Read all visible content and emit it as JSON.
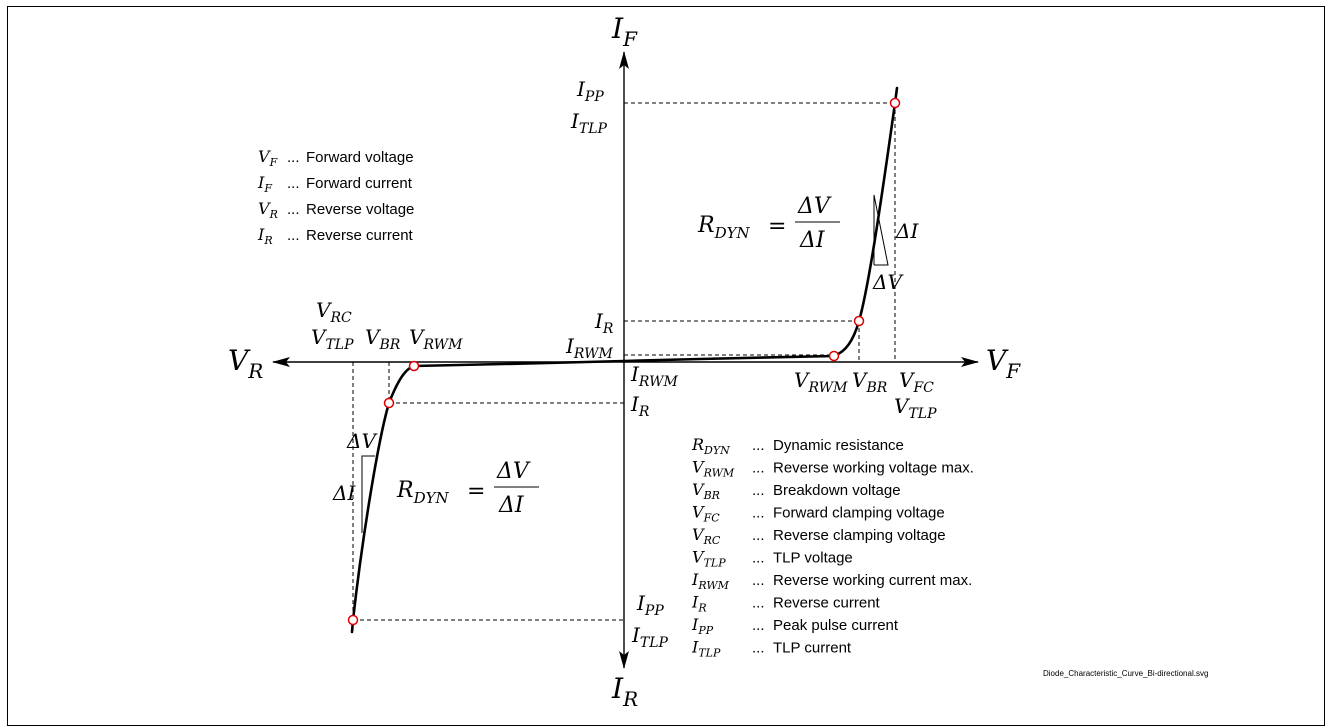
{
  "axes": {
    "top": {
      "main": "I",
      "sub": "F"
    },
    "bottom": {
      "main": "I",
      "sub": "R"
    },
    "left": {
      "main": "V",
      "sub": "R"
    },
    "right": {
      "main": "V",
      "sub": "F"
    }
  },
  "forward_labels": {
    "ipp": {
      "main": "I",
      "sub": "PP"
    },
    "itlp": {
      "main": "I",
      "sub": "TLP"
    },
    "ir": {
      "main": "I",
      "sub": "R"
    },
    "irwm": {
      "main": "I",
      "sub": "RWM"
    },
    "vrwm": {
      "main": "V",
      "sub": "RWM"
    },
    "vbr": {
      "main": "V",
      "sub": "BR"
    },
    "vfc": {
      "main": "V",
      "sub": "FC"
    },
    "vtlp": {
      "main": "V",
      "sub": "TLP"
    },
    "delta_i": "ΔI",
    "delta_v": "ΔV"
  },
  "reverse_labels": {
    "vrc": {
      "main": "V",
      "sub": "RC"
    },
    "vtlp": {
      "main": "V",
      "sub": "TLP"
    },
    "vbr": {
      "main": "V",
      "sub": "BR"
    },
    "vrwm": {
      "main": "V",
      "sub": "RWM"
    },
    "irwm": {
      "main": "I",
      "sub": "RWM"
    },
    "ir": {
      "main": "I",
      "sub": "R"
    },
    "ipp": {
      "main": "I",
      "sub": "PP"
    },
    "itlp": {
      "main": "I",
      "sub": "TLP"
    },
    "delta_i": "ΔI",
    "delta_v": "ΔV"
  },
  "formula": {
    "lhs_main": "R",
    "lhs_sub": "DYN",
    "equals": "=",
    "numerator": "ΔV",
    "denominator": "ΔI"
  },
  "legend_top": [
    {
      "main": "V",
      "sub": "F",
      "dots": "...",
      "desc": "Forward voltage"
    },
    {
      "main": "I",
      "sub": "F",
      "dots": "...",
      "desc": "Forward current"
    },
    {
      "main": "V",
      "sub": "R",
      "dots": "...",
      "desc": "Reverse voltage"
    },
    {
      "main": "I",
      "sub": "R",
      "dots": "...",
      "desc": "Reverse current"
    }
  ],
  "legend_bottom": [
    {
      "main": "R",
      "sub": "DYN",
      "dots": "...",
      "desc": "Dynamic resistance"
    },
    {
      "main": "V",
      "sub": "RWM",
      "dots": "...",
      "desc": "Reverse working voltage max."
    },
    {
      "main": "V",
      "sub": "BR",
      "dots": "...",
      "desc": "Breakdown voltage"
    },
    {
      "main": "V",
      "sub": "FC",
      "dots": "...",
      "desc": "Forward clamping voltage"
    },
    {
      "main": "V",
      "sub": "RC",
      "dots": "...",
      "desc": "Reverse clamping voltage"
    },
    {
      "main": "V",
      "sub": "TLP",
      "dots": "...",
      "desc": "TLP voltage"
    },
    {
      "main": "I",
      "sub": "RWM",
      "dots": "...",
      "desc": "Reverse working current max."
    },
    {
      "main": "I",
      "sub": "R",
      "dots": "...",
      "desc": "Reverse current"
    },
    {
      "main": "I",
      "sub": "PP",
      "dots": "...",
      "desc": "Peak pulse current"
    },
    {
      "main": "I",
      "sub": "TLP",
      "dots": "...",
      "desc": "TLP current"
    }
  ],
  "filename": "Diode_Characteristic_Curve_Bi-directional.svg",
  "colors": {
    "point_stroke": "#e00000",
    "line": "#000000",
    "background": "#ffffff"
  }
}
